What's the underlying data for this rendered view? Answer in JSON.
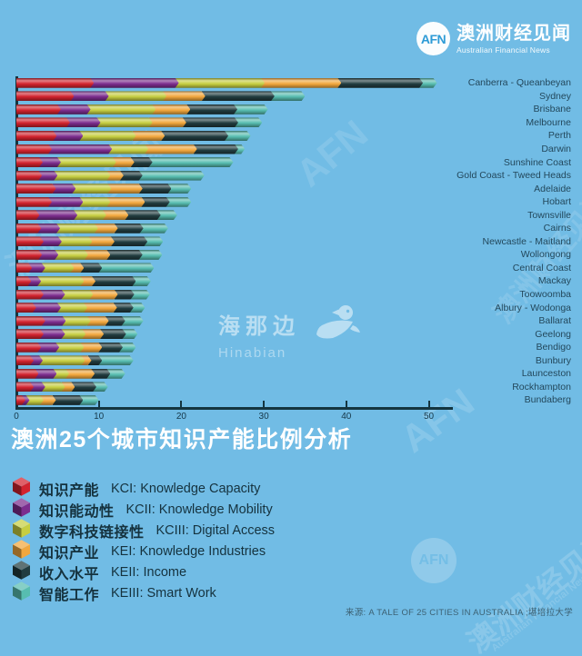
{
  "header": {
    "logo_text": "AFN",
    "brand_cn": "澳洲财经见闻",
    "brand_en": "Australian Financial News"
  },
  "title": "澳洲25个城市知识产能比例分析",
  "source": "来源: A TALE OF 25 CITIES IN AUSTRALIA ;堪培拉大学",
  "watermarks": {
    "afn": "AFN",
    "brand_cn": "澳洲财经见闻",
    "brand_en": "Australian Financial News",
    "hinabian_cn": "海那边",
    "hinabian_en": "Hinabian"
  },
  "colors": {
    "background": "#71bce5",
    "title_text": "#ffffff",
    "axis": "#143540",
    "city_label": "#23485c",
    "legend_text": "#15323e",
    "source_text": "#3c6173"
  },
  "chart_data": {
    "type": "bar",
    "orientation": "horizontal",
    "stacked": true,
    "title": "澳洲25个城市知识产能比例分析",
    "xlabel": "",
    "ylabel": "",
    "xlim": [
      0,
      53
    ],
    "x_ticks": [
      0,
      10,
      20,
      30,
      40,
      50
    ],
    "grid": false,
    "legend_position": "bottom-left",
    "categories": [
      "Canberra - Queanbeyan",
      "Sydney",
      "Brisbane",
      "Melbourne",
      "Perth",
      "Darwin",
      "Sunshine Coast",
      "Gold Coast - Tweed Heads",
      "Adelaide",
      "Hobart",
      "Townsville",
      "Cairns",
      "Newcastle - Maitland",
      "Wollongong",
      "Central Coast",
      "Mackay",
      "Toowoomba",
      "Albury - Wodonga",
      "Ballarat",
      "Geelong",
      "Bendigo",
      "Bunbury",
      "Launceston",
      "Rockhampton",
      "Bundaberg"
    ],
    "series": [
      {
        "key": "KCI",
        "label_cn": "知识产能",
        "label_en": "KCI: Knowledge Capacity",
        "color": "#d2232e",
        "values": [
          9.4,
          7.0,
          5.4,
          6.5,
          4.9,
          4.3,
          3.2,
          3.1,
          4.8,
          4.3,
          2.8,
          3.0,
          3.3,
          3.1,
          1.9,
          1.8,
          3.3,
          2.4,
          3.5,
          3.3,
          3.0,
          2.1,
          2.7,
          2.1,
          1.1
        ]
      },
      {
        "key": "KCII",
        "label_cn": "知识能动性",
        "label_en": "KCII: Knowledge Mobility",
        "color": "#7c2d8e",
        "values": [
          10.3,
          4.2,
          3.6,
          3.7,
          3.2,
          7.3,
          2.2,
          1.9,
          2.4,
          3.8,
          4.6,
          2.3,
          2.2,
          2.0,
          1.6,
          1.2,
          2.6,
          3.0,
          2.5,
          2.6,
          2.2,
          1.1,
          2.2,
          1.4,
          0.5
        ]
      },
      {
        "key": "KCIII",
        "label_cn": "数字科技链接性",
        "label_en": "KCIII: Digital Access",
        "color": "#c6ce41",
        "values": [
          10.4,
          7.0,
          7.9,
          6.3,
          6.4,
          4.4,
          6.7,
          6.4,
          4.3,
          3.3,
          3.5,
          4.6,
          3.7,
          3.6,
          3.5,
          5.2,
          3.4,
          3.2,
          3.0,
          2.5,
          3.0,
          5.1,
          1.5,
          2.4,
          1.7
        ]
      },
      {
        "key": "KEI",
        "label_cn": "知识产业",
        "label_en": "KEI: Knowledge Industries",
        "color": "#f2a73d",
        "values": [
          9.3,
          4.7,
          4.2,
          4.1,
          3.5,
          5.9,
          2.2,
          1.6,
          3.8,
          4.2,
          2.7,
          2.4,
          2.7,
          2.7,
          1.2,
          1.4,
          3.0,
          3.6,
          2.2,
          2.2,
          2.2,
          0.8,
          3.1,
          1.2,
          1.5
        ]
      },
      {
        "key": "KEII",
        "label_cn": "收入水平",
        "label_en": "KEII: Income",
        "color": "#213c3f",
        "values": [
          9.9,
          8.4,
          5.7,
          6.3,
          7.7,
          5.0,
          2.2,
          2.3,
          3.5,
          3.0,
          3.9,
          3.1,
          4.0,
          3.9,
          2.2,
          4.9,
          2.0,
          2.0,
          2.0,
          2.7,
          2.5,
          1.3,
          1.9,
          2.6,
          3.3
        ]
      },
      {
        "key": "KEIII",
        "label_cn": "智能工作",
        "label_en": "KEIII: Smart Work",
        "color": "#57bdb0",
        "values": [
          1.7,
          3.7,
          3.7,
          2.9,
          2.7,
          0.8,
          9.8,
          7.5,
          2.4,
          2.6,
          2.0,
          3.0,
          1.9,
          2.4,
          6.3,
          1.8,
          1.9,
          1.4,
          2.2,
          1.4,
          1.6,
          3.8,
          1.8,
          1.4,
          1.9
        ]
      }
    ]
  }
}
